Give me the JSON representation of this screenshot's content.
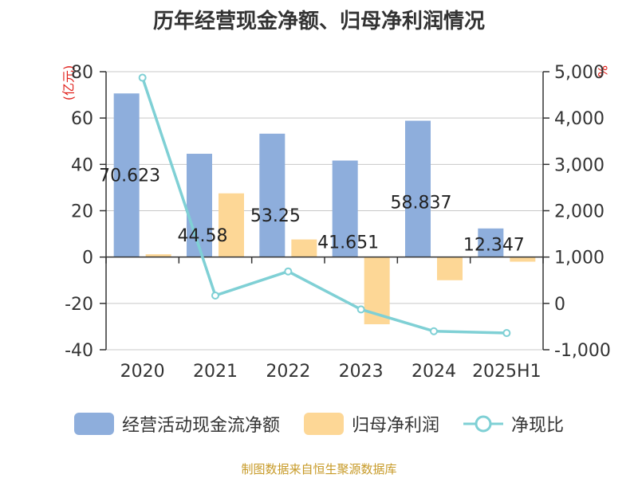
{
  "title": "历年经营现金净额、归母净利润情况",
  "unit_left": "(亿元)",
  "unit_right": "%",
  "source": "制图数据来自恒生聚源数据库",
  "colors": {
    "cash": "#8eaedc",
    "profit": "#fdd796",
    "ratio": "#7fd0d5",
    "grid": "#c8c8c8",
    "axis": "#333333"
  },
  "chart_data": {
    "type": "bar",
    "title": "历年经营现金净额、归母净利润情况",
    "categories": [
      "2020",
      "2021",
      "2022",
      "2023",
      "2024",
      "2025H1"
    ],
    "ylim_left": [
      -40,
      80
    ],
    "yticks_left": [
      "80",
      "60",
      "40",
      "20",
      "0",
      "-20",
      "-40"
    ],
    "ylim_right": [
      -1000,
      5000
    ],
    "yticks_right": [
      "5,000",
      "4,000",
      "3,000",
      "2,000",
      "1,000",
      "0",
      "-1,000"
    ],
    "grid": true,
    "legend_position": "bottom",
    "series": [
      {
        "name": "经营活动现金流净额",
        "type": "bar",
        "axis": "left",
        "values": [
          70.623,
          44.58,
          53.25,
          41.651,
          58.837,
          12.347
        ],
        "labels": [
          "70.623",
          "44.58",
          "53.25",
          "41.651",
          "58.837",
          "12.347"
        ]
      },
      {
        "name": "归母净利润",
        "type": "bar",
        "axis": "left",
        "values": [
          1.2,
          27.5,
          7.6,
          -29.0,
          -10.0,
          -2.0
        ]
      },
      {
        "name": "净现比",
        "type": "line",
        "axis": "right",
        "values": [
          4870,
          170,
          690,
          -130,
          -600,
          -640
        ]
      }
    ]
  }
}
